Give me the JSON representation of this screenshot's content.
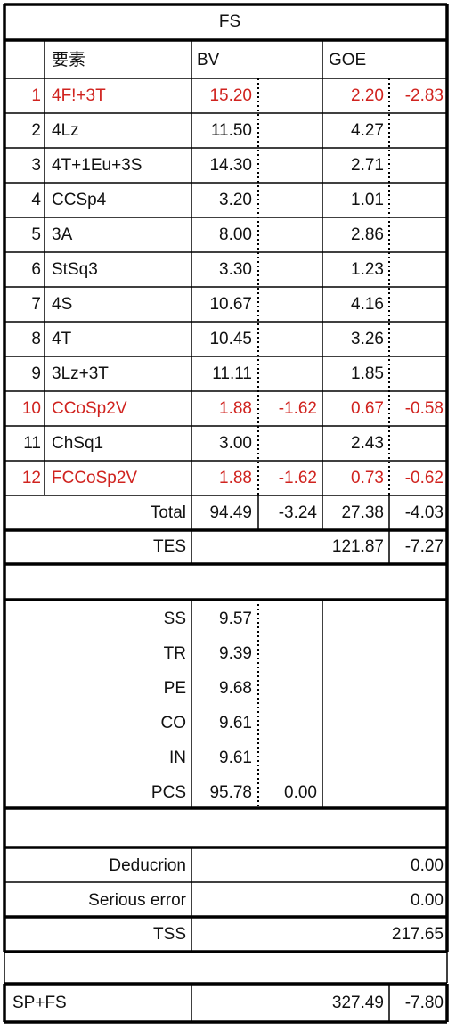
{
  "header": {
    "title": "FS",
    "columns": [
      "要素",
      "BV",
      "GOE"
    ]
  },
  "elements": [
    {
      "no": "1",
      "name": "4F!+3T",
      "bv": "15.20",
      "goe": "2.20",
      "goe_adj": "-2.83",
      "red": true
    },
    {
      "no": "2",
      "name": "4Lz",
      "bv": "11.50",
      "goe": "4.27"
    },
    {
      "no": "3",
      "name": "4T+1Eu+3S",
      "bv": "14.30",
      "goe": "2.71"
    },
    {
      "no": "4",
      "name": "CCSp4",
      "bv": "3.20",
      "goe": "1.01"
    },
    {
      "no": "5",
      "name": "3A",
      "bv": "8.00",
      "goe": "2.86"
    },
    {
      "no": "6",
      "name": "StSq3",
      "bv": "3.30",
      "goe": "1.23"
    },
    {
      "no": "7",
      "name": "4S",
      "bv": "10.67",
      "goe": "4.16"
    },
    {
      "no": "8",
      "name": "4T",
      "bv": "10.45",
      "goe": "3.26"
    },
    {
      "no": "9",
      "name": "3Lz+3T",
      "bv": "11.11",
      "goe": "1.85"
    },
    {
      "no": "10",
      "name": "CCoSp2V",
      "bv": "1.88",
      "bv_adj": "-1.62",
      "goe": "0.67",
      "goe_adj": "-0.58",
      "red": true
    },
    {
      "no": "11",
      "name": "ChSq1",
      "bv": "3.00",
      "goe": "2.43"
    },
    {
      "no": "12",
      "name": "FCCoSp2V",
      "bv": "1.88",
      "bv_adj": "-1.62",
      "goe": "0.73",
      "goe_adj": "-0.62",
      "red": true
    }
  ],
  "total": {
    "label": "Total",
    "bv": "94.49",
    "bv_adj": "-3.24",
    "goe": "27.38",
    "goe_adj": "-4.03"
  },
  "tes": {
    "label": "TES",
    "value": "121.87",
    "adj": "-7.27"
  },
  "components": [
    {
      "label": "SS",
      "value": "9.57"
    },
    {
      "label": "TR",
      "value": "9.39"
    },
    {
      "label": "PE",
      "value": "9.68"
    },
    {
      "label": "CO",
      "value": "9.61"
    },
    {
      "label": "IN",
      "value": "9.61"
    },
    {
      "label": "PCS",
      "value": "95.78",
      "adj": "0.00"
    }
  ],
  "deductions": [
    {
      "label": "Deducrion",
      "value": "0.00"
    },
    {
      "label": "Serious error",
      "value": "0.00"
    }
  ],
  "tss": {
    "label": "TSS",
    "value": "217.65"
  },
  "sp_fs": {
    "label": "SP+FS",
    "value": "327.49",
    "adj": "-7.80"
  }
}
